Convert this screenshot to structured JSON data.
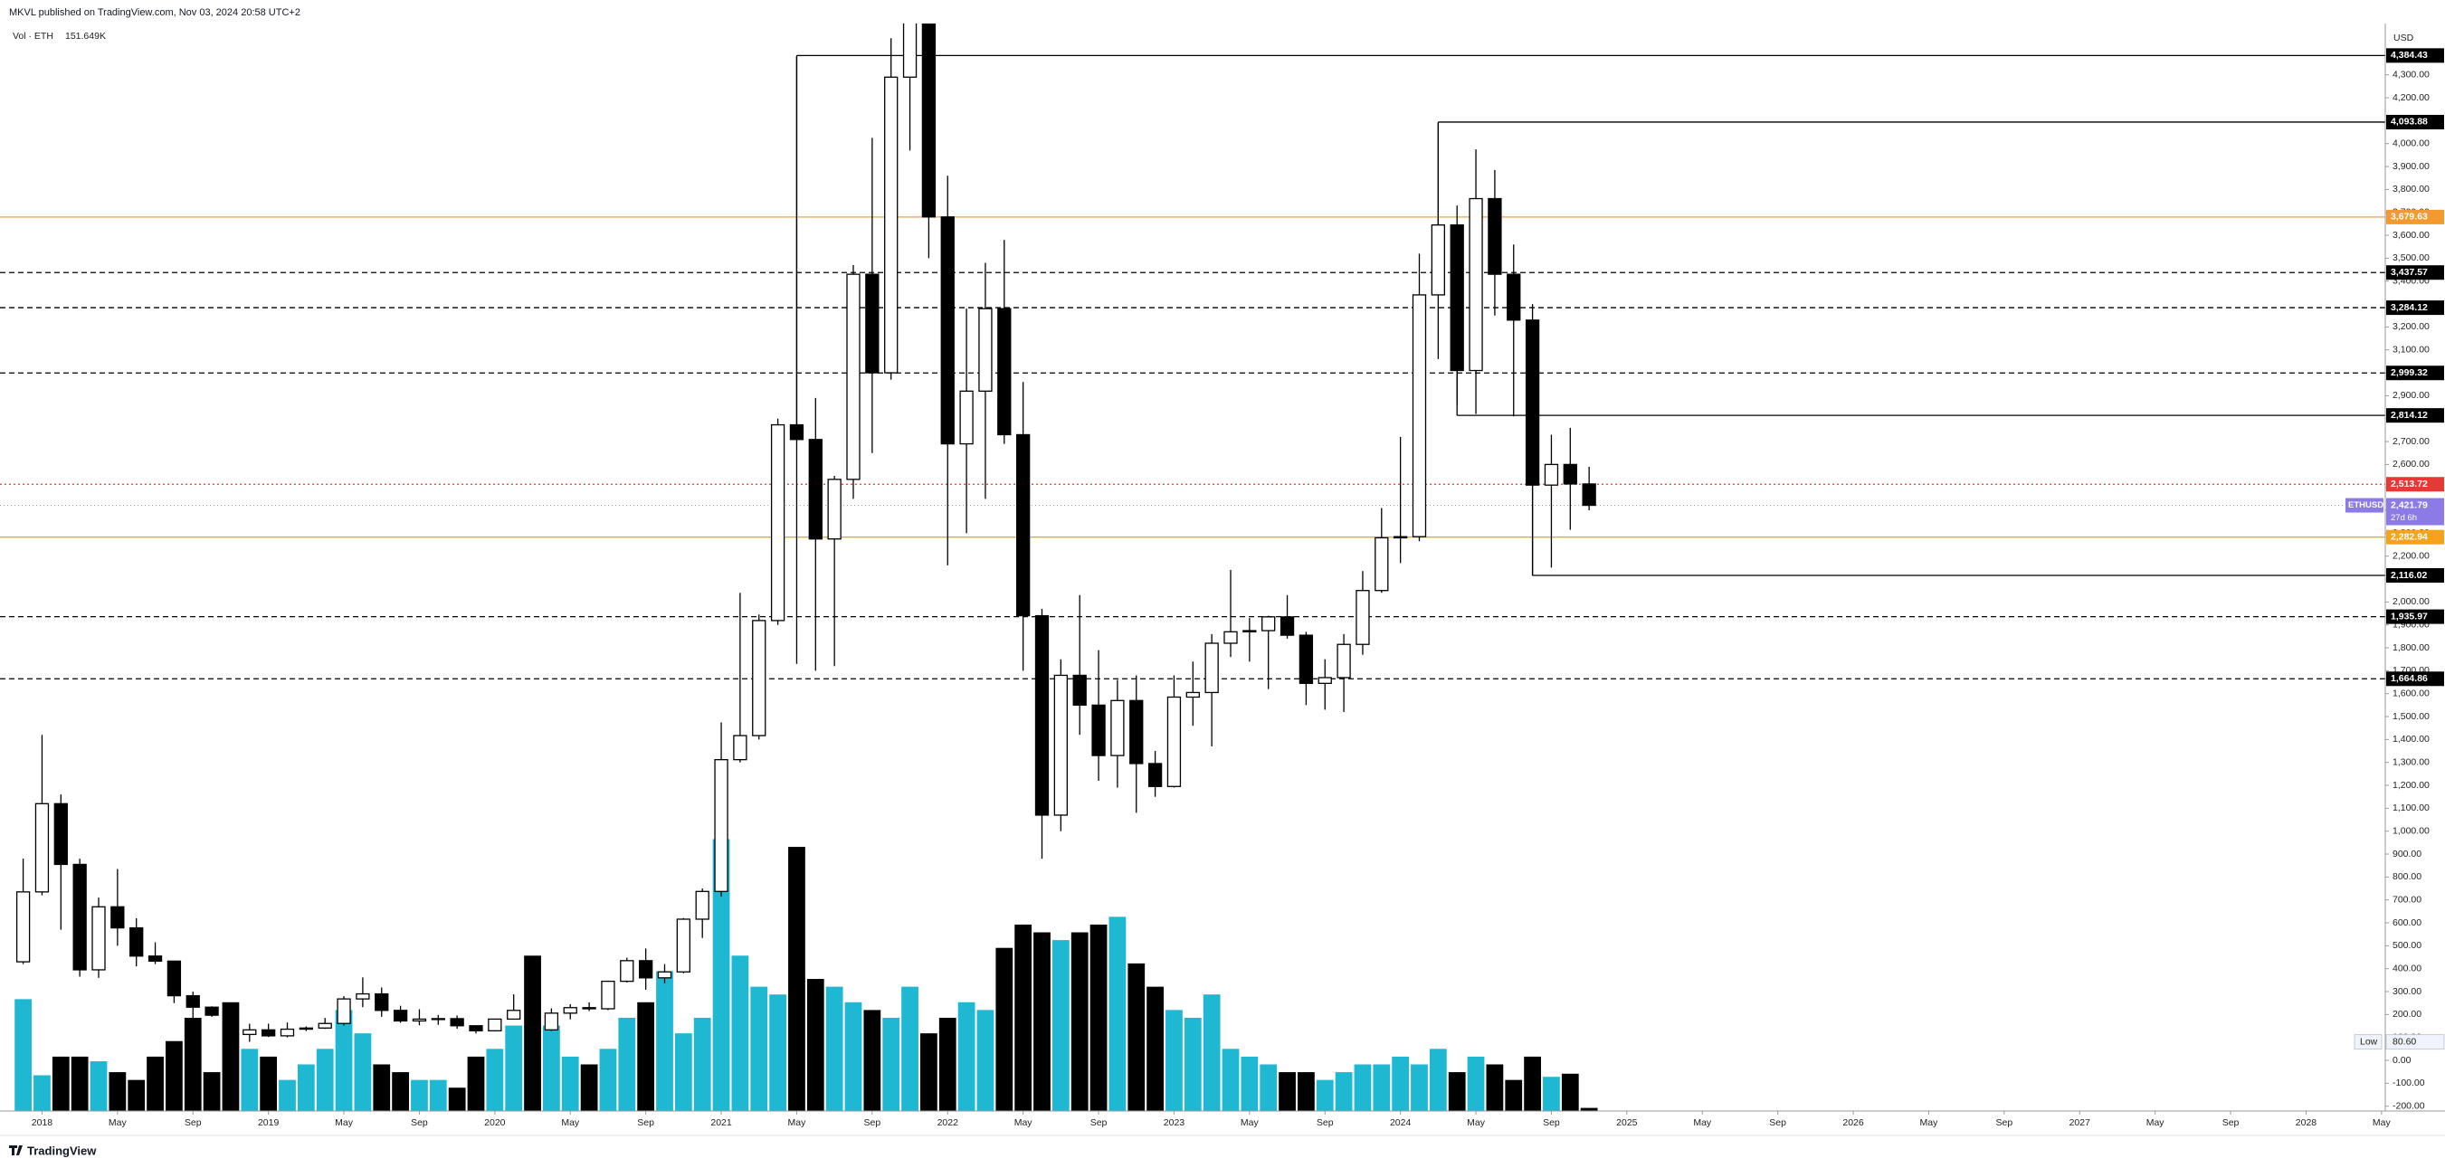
{
  "header": "MKVL published on TradingView.com, Nov 03, 2024 20:58 UTC+2",
  "footer": "TradingView",
  "chart_data": {
    "type": "candlestick",
    "currency": "USD",
    "x": [
      "2017-12",
      "2018-01",
      "2018-02",
      "2018-03",
      "2018-04",
      "2018-05",
      "2018-06",
      "2018-07",
      "2018-08",
      "2018-09",
      "2018-10",
      "2018-11",
      "2018-12",
      "2019-01",
      "2019-02",
      "2019-03",
      "2019-04",
      "2019-05",
      "2019-06",
      "2019-07",
      "2019-08",
      "2019-09",
      "2019-10",
      "2019-11",
      "2019-12",
      "2020-01",
      "2020-02",
      "2020-03",
      "2020-04",
      "2020-05",
      "2020-06",
      "2020-07",
      "2020-08",
      "2020-09",
      "2020-10",
      "2020-11",
      "2020-12",
      "2021-01",
      "2021-02",
      "2021-03",
      "2021-04",
      "2021-05",
      "2021-06",
      "2021-07",
      "2021-08",
      "2021-09",
      "2021-10",
      "2021-11",
      "2021-12",
      "2022-01",
      "2022-02",
      "2022-03",
      "2022-04",
      "2022-05",
      "2022-06",
      "2022-07",
      "2022-08",
      "2022-09",
      "2022-10",
      "2022-11",
      "2022-12",
      "2023-01",
      "2023-02",
      "2023-03",
      "2023-04",
      "2023-05",
      "2023-06",
      "2023-07",
      "2023-08",
      "2023-09",
      "2023-10",
      "2023-11",
      "2023-12",
      "2024-01",
      "2024-02",
      "2024-03",
      "2024-04",
      "2024-05",
      "2024-06",
      "2024-07",
      "2024-08",
      "2024-09",
      "2024-10",
      "2024-11"
    ],
    "open": [
      430,
      735,
      1120,
      855,
      395,
      670,
      578,
      455,
      433,
      282,
      232,
      197,
      113,
      133,
      107,
      136,
      141,
      161,
      268,
      290,
      218,
      172,
      180,
      182,
      151,
      129,
      180,
      218,
      133,
      206,
      230,
      225,
      345,
      435,
      360,
      386,
      616,
      737,
      1312,
      1417,
      1919,
      2773,
      2709,
      2275,
      2535,
      3430,
      3000,
      4290,
      4630,
      3680,
      2690,
      2920,
      3280,
      2730,
      1940,
      1070,
      1680,
      1550,
      1330,
      1570,
      1295,
      1195,
      1585,
      1605,
      1820,
      1870,
      1875,
      1935,
      1855,
      1645,
      1670,
      1815,
      2050,
      2280,
      2285,
      3340,
      3645,
      3010,
      3760,
      3430,
      3230,
      2510,
      2600,
      2515
    ],
    "high": [
      880,
      1420,
      1160,
      880,
      710,
      835,
      620,
      515,
      435,
      300,
      236,
      222,
      160,
      160,
      165,
      148,
      185,
      280,
      362,
      318,
      238,
      223,
      198,
      196,
      153,
      181,
      288,
      253,
      227,
      245,
      253,
      348,
      448,
      488,
      420,
      621,
      750,
      1475,
      2040,
      1945,
      2800,
      4380,
      2890,
      2550,
      3470,
      4025,
      4460,
      4870,
      4780,
      3860,
      3280,
      3480,
      3580,
      2960,
      1970,
      1750,
      2030,
      1790,
      1660,
      1680,
      1350,
      1680,
      1740,
      1860,
      2140,
      1930,
      1940,
      2030,
      1870,
      1750,
      1860,
      2135,
      2410,
      2720,
      3520,
      4090,
      3730,
      3975,
      3885,
      3560,
      3300,
      2730,
      2760,
      2590
    ],
    "low": [
      420,
      720,
      570,
      365,
      360,
      500,
      410,
      420,
      250,
      167,
      190,
      100,
      81,
      102,
      100,
      128,
      137,
      152,
      232,
      190,
      164,
      153,
      155,
      138,
      117,
      126,
      178,
      90,
      128,
      179,
      215,
      219,
      340,
      308,
      336,
      380,
      534,
      715,
      1300,
      1400,
      1900,
      1730,
      1700,
      1720,
      2450,
      2650,
      2970,
      3970,
      3500,
      2160,
      2300,
      2450,
      2690,
      1700,
      880,
      1000,
      1420,
      1220,
      1190,
      1080,
      1150,
      1190,
      1460,
      1370,
      1760,
      1740,
      1620,
      1840,
      1550,
      1530,
      1520,
      1770,
      2040,
      2170,
      2265,
      3060,
      2860,
      2820,
      3250,
      2810,
      2115,
      2150,
      2315,
      2400
    ],
    "close": [
      735,
      1120,
      855,
      395,
      670,
      578,
      455,
      433,
      282,
      232,
      197,
      113,
      133,
      107,
      136,
      141,
      161,
      268,
      290,
      218,
      172,
      180,
      182,
      151,
      129,
      180,
      218,
      133,
      206,
      230,
      225,
      345,
      435,
      360,
      386,
      616,
      737,
      1312,
      1417,
      1919,
      2773,
      2709,
      2275,
      2535,
      3430,
      3000,
      4290,
      4630,
      3680,
      2690,
      2920,
      3280,
      2730,
      1940,
      1070,
      1680,
      1550,
      1330,
      1570,
      1295,
      1195,
      1585,
      1605,
      1820,
      1870,
      1875,
      1935,
      1855,
      1645,
      1670,
      1815,
      2050,
      2280,
      2285,
      3340,
      3645,
      3010,
      3760,
      3430,
      3230,
      2510,
      2600,
      2515,
      2421.79
    ],
    "up_color": "#ffffff",
    "down_color": "#000000",
    "volume": {
      "name": "Vol · ETH",
      "last_label": "151.649K",
      "up_color": "#1fb8d3",
      "down_color": "#000000",
      "values": [
        5472,
        1748,
        2660,
        2660,
        2432,
        1900,
        1520,
        2660,
        3420,
        4560,
        1900,
        5320,
        3040,
        2660,
        1520,
        2280,
        3040,
        4940,
        3800,
        2280,
        1900,
        1520,
        1520,
        1140,
        2660,
        3040,
        4180,
        7600,
        4180,
        2660,
        2280,
        3040,
        4560,
        5320,
        6840,
        3800,
        4560,
        13300,
        7600,
        6080,
        5700,
        12920,
        6460,
        6080,
        5320,
        4940,
        4560,
        6080,
        3800,
        4560,
        5320,
        4940,
        7980,
        9120,
        8740,
        8360,
        8740,
        9120,
        9500,
        7220,
        6080,
        4940,
        4560,
        5700,
        3040,
        2660,
        2280,
        1900,
        1900,
        1520,
        1900,
        2280,
        2280,
        2660,
        2280,
        3040,
        1900,
        2660,
        2280,
        1520,
        2660,
        1672,
        1824,
        151.649
      ]
    },
    "ylim": [
      -221,
      4524
    ],
    "yticks": [
      {
        "value": -200,
        "label": "-200.00"
      },
      {
        "value": -100,
        "label": "-100.00"
      },
      {
        "value": 0,
        "label": "0.00"
      },
      {
        "value": 100,
        "label": "100.00"
      },
      {
        "value": 200,
        "label": "200.00"
      },
      {
        "value": 300,
        "label": "300.00"
      },
      {
        "value": 400,
        "label": "400.00"
      },
      {
        "value": 500,
        "label": "500.00"
      },
      {
        "value": 600,
        "label": "600.00"
      },
      {
        "value": 700,
        "label": "700.00"
      },
      {
        "value": 800,
        "label": "800.00"
      },
      {
        "value": 900,
        "label": "900.00"
      },
      {
        "value": 1000,
        "label": "1,000.00"
      },
      {
        "value": 1100,
        "label": "1,100.00"
      },
      {
        "value": 1200,
        "label": "1,200.00"
      },
      {
        "value": 1300,
        "label": "1,300.00"
      },
      {
        "value": 1400,
        "label": "1,400.00"
      },
      {
        "value": 1500,
        "label": "1,500.00"
      },
      {
        "value": 1600,
        "label": "1,600.00"
      },
      {
        "value": 1700,
        "label": "1,700.00"
      },
      {
        "value": 1800,
        "label": "1,800.00"
      },
      {
        "value": 1900,
        "label": "1,900.00"
      },
      {
        "value": 2000,
        "label": "2,000.00"
      },
      {
        "value": 2100,
        "label": "2,100.00"
      },
      {
        "value": 2200,
        "label": "2,200.00"
      },
      {
        "value": 2300,
        "label": "2,300.00"
      },
      {
        "value": 2400,
        "label": "2,400.00"
      },
      {
        "value": 2500,
        "label": "2,500.00"
      },
      {
        "value": 2600,
        "label": "2,600.00"
      },
      {
        "value": 2700,
        "label": "2,700.00"
      },
      {
        "value": 2800,
        "label": "2,800.00"
      },
      {
        "value": 2900,
        "label": "2,900.00"
      },
      {
        "value": 3000,
        "label": "3,000.00"
      },
      {
        "value": 3100,
        "label": "3,100.00"
      },
      {
        "value": 3200,
        "label": "3,200.00"
      },
      {
        "value": 3300,
        "label": "3,300.00"
      },
      {
        "value": 3400,
        "label": "3,400.00"
      },
      {
        "value": 3500,
        "label": "3,500.00"
      },
      {
        "value": 3600,
        "label": "3,600.00"
      },
      {
        "value": 3700,
        "label": "3,700.00"
      },
      {
        "value": 3800,
        "label": "3,800.00"
      },
      {
        "value": 3900,
        "label": "3,900.00"
      },
      {
        "value": 4000,
        "label": "4,000.00"
      },
      {
        "value": 4100,
        "label": "4,100.00"
      },
      {
        "value": 4200,
        "label": "4,200.00"
      },
      {
        "value": 4300,
        "label": "4,300.00"
      }
    ],
    "xticks": [
      {
        "value": "2018-01",
        "label": "2018"
      },
      {
        "value": "2018-05",
        "label": "May"
      },
      {
        "value": "2018-09",
        "label": "Sep"
      },
      {
        "value": "2019-01",
        "label": "2019"
      },
      {
        "value": "2019-05",
        "label": "May"
      },
      {
        "value": "2019-09",
        "label": "Sep"
      },
      {
        "value": "2020-01",
        "label": "2020"
      },
      {
        "value": "2020-05",
        "label": "May"
      },
      {
        "value": "2020-09",
        "label": "Sep"
      },
      {
        "value": "2021-01",
        "label": "2021"
      },
      {
        "value": "2021-05",
        "label": "May"
      },
      {
        "value": "2021-09",
        "label": "Sep"
      },
      {
        "value": "2022-01",
        "label": "2022"
      },
      {
        "value": "2022-05",
        "label": "May"
      },
      {
        "value": "2022-09",
        "label": "Sep"
      },
      {
        "value": "2023-01",
        "label": "2023"
      },
      {
        "value": "2023-05",
        "label": "May"
      },
      {
        "value": "2023-09",
        "label": "Sep"
      },
      {
        "value": "2024-01",
        "label": "2024"
      },
      {
        "value": "2024-05",
        "label": "May"
      },
      {
        "value": "2024-09",
        "label": "Sep"
      },
      {
        "value": "2025-01",
        "label": "2025"
      },
      {
        "value": "2025-05",
        "label": "May"
      },
      {
        "value": "2025-09",
        "label": "Sep"
      },
      {
        "value": "2026-01",
        "label": "2026"
      },
      {
        "value": "2026-05",
        "label": "May"
      },
      {
        "value": "2026-09",
        "label": "Sep"
      },
      {
        "value": "2027-01",
        "label": "2027"
      },
      {
        "value": "2027-05",
        "label": "May"
      },
      {
        "value": "2027-09",
        "label": "Sep"
      },
      {
        "value": "2028-01",
        "label": "2028"
      },
      {
        "value": "2028-05",
        "label": "May"
      }
    ],
    "levels": [
      {
        "value": 4384.43,
        "label": "4,384.43",
        "style": "solid",
        "color": "#000000",
        "tag_color": "#000000",
        "start": "2021-05"
      },
      {
        "value": 4093.88,
        "label": "4,093.88",
        "style": "solid",
        "color": "#000000",
        "tag_color": "#000000",
        "start": "2024-03"
      },
      {
        "value": 3679.63,
        "label": "3,679.63",
        "style": "solid",
        "color": "#f0a040",
        "tag_color": "#f29a2e"
      },
      {
        "value": 3437.57,
        "label": "3,437.57",
        "style": "dashed",
        "color": "#000000",
        "tag_color": "#000000"
      },
      {
        "value": 3284.12,
        "label": "3,284.12",
        "style": "dashed",
        "color": "#000000",
        "tag_color": "#000000"
      },
      {
        "value": 2999.32,
        "label": "2,999.32",
        "style": "dashed",
        "color": "#000000",
        "tag_color": "#000000"
      },
      {
        "value": 2814.12,
        "label": "2,814.12",
        "style": "solid",
        "color": "#000000",
        "tag_color": "#000000",
        "start": "2024-04"
      },
      {
        "value": 2513.72,
        "label": "2,513.72",
        "style": "dotted",
        "color": "#e53935",
        "tag_color": "#e53935"
      },
      {
        "value": 2282.94,
        "label": "2,282.94",
        "style": "solid",
        "color": "#c9b63a",
        "tag_color": "#f7a21b"
      },
      {
        "value": 2116.02,
        "label": "2,116.02",
        "style": "solid",
        "color": "#000000",
        "tag_color": "#000000",
        "start": "2024-08"
      },
      {
        "value": 1935.97,
        "label": "1,935.97",
        "style": "dashed",
        "color": "#000000",
        "tag_color": "#000000"
      },
      {
        "value": 1664.86,
        "label": "1,664.86",
        "style": "dashed",
        "color": "#000000",
        "tag_color": "#000000"
      }
    ],
    "last_price": {
      "symbol": "ETHUSD",
      "value": 2421.79,
      "label": "2,421.79",
      "countdown": "27d 6h",
      "color": "#8c7ae6"
    },
    "low_marker": {
      "name": "Low",
      "value": 80.6,
      "label": "80.60"
    }
  }
}
